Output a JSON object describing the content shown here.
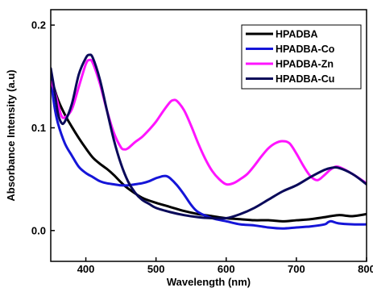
{
  "chart_data": {
    "type": "line",
    "xlabel": "Wavelength (nm)",
    "ylabel": "Absorbance Intensity (a.u)",
    "xlim": [
      350,
      800
    ],
    "ylim": [
      -0.03,
      0.215
    ],
    "xticks": [
      400,
      500,
      600,
      700,
      800
    ],
    "yticks": [
      0.0,
      0.1,
      0.2
    ],
    "ytick_labels": [
      "0.0",
      "0.1",
      "0.2"
    ],
    "grid": false,
    "legend_position": "top-right",
    "series": [
      {
        "name": "HPADBA",
        "color": "#000000",
        "x": [
          350,
          360,
          370,
          380,
          390,
          400,
          410,
          420,
          430,
          440,
          450,
          460,
          480,
          500,
          520,
          540,
          560,
          580,
          600,
          620,
          640,
          660,
          680,
          700,
          720,
          740,
          760,
          780,
          800
        ],
        "y": [
          0.15,
          0.128,
          0.113,
          0.101,
          0.09,
          0.08,
          0.071,
          0.065,
          0.06,
          0.054,
          0.047,
          0.041,
          0.032,
          0.027,
          0.023,
          0.019,
          0.016,
          0.014,
          0.012,
          0.011,
          0.01,
          0.01,
          0.009,
          0.01,
          0.011,
          0.013,
          0.015,
          0.014,
          0.016
        ]
      },
      {
        "name": "HPADBA-Co",
        "color": "#1515d8",
        "x": [
          350,
          355,
          360,
          370,
          380,
          390,
          400,
          410,
          420,
          430,
          440,
          450,
          460,
          470,
          480,
          490,
          500,
          505,
          510,
          515,
          520,
          530,
          540,
          550,
          560,
          580,
          600,
          620,
          640,
          660,
          680,
          700,
          720,
          740,
          745,
          750,
          760,
          780,
          800
        ],
        "y": [
          0.148,
          0.122,
          0.105,
          0.085,
          0.073,
          0.062,
          0.056,
          0.052,
          0.048,
          0.046,
          0.045,
          0.044,
          0.044,
          0.045,
          0.046,
          0.048,
          0.051,
          0.052,
          0.053,
          0.053,
          0.051,
          0.044,
          0.035,
          0.025,
          0.018,
          0.012,
          0.009,
          0.006,
          0.005,
          0.003,
          0.002,
          0.003,
          0.004,
          0.006,
          0.008,
          0.009,
          0.007,
          0.006,
          0.006
        ]
      },
      {
        "name": "HPADBA-Zn",
        "color": "#ff14ff",
        "x": [
          350,
          355,
          360,
          365,
          370,
          380,
          390,
          400,
          405,
          410,
          420,
          430,
          440,
          450,
          455,
          460,
          470,
          480,
          490,
          500,
          510,
          520,
          525,
          530,
          540,
          550,
          560,
          570,
          580,
          590,
          600,
          610,
          620,
          630,
          640,
          650,
          660,
          670,
          680,
          690,
          700,
          710,
          720,
          730,
          740,
          750,
          760,
          780,
          800
        ],
        "y": [
          0.145,
          0.137,
          0.124,
          0.112,
          0.11,
          0.118,
          0.14,
          0.162,
          0.166,
          0.163,
          0.143,
          0.117,
          0.095,
          0.081,
          0.079,
          0.08,
          0.086,
          0.091,
          0.098,
          0.106,
          0.116,
          0.125,
          0.127,
          0.126,
          0.117,
          0.102,
          0.085,
          0.07,
          0.058,
          0.05,
          0.045,
          0.046,
          0.05,
          0.055,
          0.063,
          0.072,
          0.08,
          0.085,
          0.087,
          0.085,
          0.075,
          0.063,
          0.053,
          0.049,
          0.054,
          0.06,
          0.062,
          0.055,
          0.046
        ]
      },
      {
        "name": "HPADBA-Cu",
        "color": "#0a0a5a",
        "x": [
          350,
          355,
          360,
          365,
          370,
          380,
          390,
          400,
          405,
          410,
          420,
          430,
          440,
          450,
          460,
          470,
          480,
          490,
          500,
          520,
          540,
          560,
          580,
          600,
          620,
          640,
          660,
          680,
          700,
          720,
          740,
          750,
          760,
          780,
          800
        ],
        "y": [
          0.158,
          0.138,
          0.115,
          0.105,
          0.106,
          0.123,
          0.152,
          0.168,
          0.171,
          0.168,
          0.147,
          0.117,
          0.088,
          0.065,
          0.048,
          0.037,
          0.03,
          0.026,
          0.022,
          0.018,
          0.015,
          0.013,
          0.012,
          0.012,
          0.016,
          0.022,
          0.03,
          0.038,
          0.044,
          0.052,
          0.059,
          0.061,
          0.061,
          0.055,
          0.045
        ]
      }
    ]
  }
}
